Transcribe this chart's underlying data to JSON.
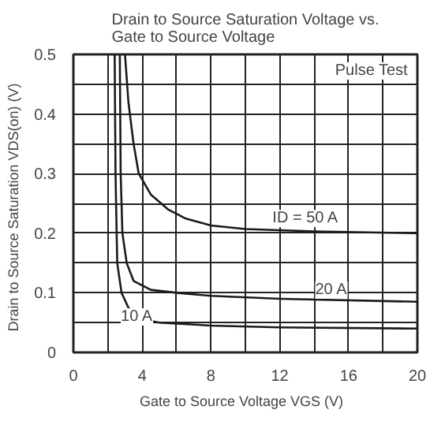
{
  "chart_data": {
    "type": "line",
    "title": "Drain to Source Saturation Voltage vs.\nGate to Source Voltage",
    "xlabel": "Gate to Source Voltage  VGS  (V)",
    "ylabel": "Drain to Source Saturation  VDS(on)  (V)",
    "xlim": [
      0,
      20
    ],
    "ylim": [
      0,
      0.5
    ],
    "xticks": [
      0,
      {
        "value": 2,
        "label": null
      },
      4,
      {
        "value": 6,
        "label": null
      },
      8,
      {
        "value": 10,
        "label": null
      },
      12,
      {
        "value": 14,
        "label": null
      },
      16,
      {
        "value": 18,
        "label": null
      },
      20
    ],
    "yticks": [
      0,
      {
        "value": 0.05,
        "label": null
      },
      0.1,
      {
        "value": 0.15,
        "label": null
      },
      0.2,
      {
        "value": 0.25,
        "label": null
      },
      0.3,
      {
        "value": 0.35,
        "label": null
      },
      0.4,
      {
        "value": 0.45,
        "label": null
      },
      0.5
    ],
    "grid": true,
    "line_style": "solid",
    "marker": "none",
    "series": [
      {
        "color": "#1a1a1a",
        "x": [
          3.0,
          3.2,
          3.5,
          3.8,
          4.5,
          5.5,
          6.5,
          8,
          10,
          14,
          20
        ],
        "values": [
          0.5,
          0.42,
          0.35,
          0.3,
          0.265,
          0.24,
          0.225,
          0.213,
          0.207,
          0.203,
          0.2
        ]
      },
      {
        "color": "#1a1a1a",
        "x": [
          2.7,
          2.75,
          2.85,
          3.1,
          3.5,
          4.5,
          6,
          8,
          12,
          20
        ],
        "values": [
          0.5,
          0.3,
          0.2,
          0.15,
          0.12,
          0.105,
          0.1,
          0.095,
          0.09,
          0.085
        ]
      },
      {
        "color": "#1a1a1a",
        "x": [
          2.4,
          2.45,
          2.55,
          2.8,
          3.2,
          3.8,
          5,
          8,
          12,
          20
        ],
        "values": [
          0.5,
          0.3,
          0.15,
          0.1,
          0.075,
          0.057,
          0.05,
          0.045,
          0.042,
          0.04
        ]
      }
    ],
    "annotations": [
      "Pulse Test",
      {
        "text": "ID = 50 A",
        "x": 13.5,
        "y": 0.21
      },
      {
        "text": "20 A",
        "x": 15,
        "y": 0.09
      },
      {
        "text": "10 A",
        "x": 3.7,
        "y": 0.045
      }
    ]
  }
}
